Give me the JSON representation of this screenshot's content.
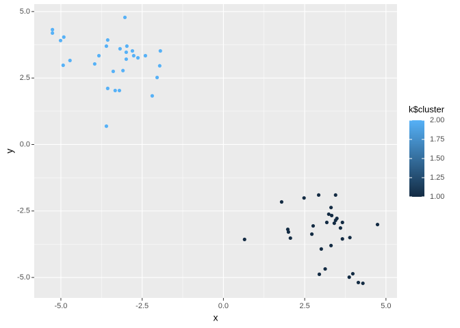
{
  "chart_data": {
    "type": "scatter",
    "x_label": "x",
    "y_label": "y",
    "x": [
      -5.26,
      -5.26,
      -4.91,
      -5.01,
      -4.93,
      -4.72,
      -3.03,
      -3.56,
      -3.6,
      -3.83,
      -3.96,
      -3.18,
      -2.97,
      -2.99,
      -2.8,
      -2.76,
      -2.63,
      -2.4,
      -1.94,
      -1.96,
      -3.39,
      -3.09,
      -2.99,
      -2.04,
      -3.56,
      -3.33,
      -3.2,
      -2.19,
      -3.6,
      1.79,
      2.48,
      2.93,
      3.45,
      3.31,
      3.24,
      3.33,
      3.49,
      3.45,
      3.18,
      3.41,
      3.66,
      3.6,
      2.76,
      1.98,
      2.0,
      2.72,
      2.06,
      0.65,
      3.89,
      4.74,
      3.31,
      3.01,
      3.66,
      3.13,
      3.98,
      2.95,
      3.87,
      4.15,
      4.29
    ],
    "values": [
      4.32,
      4.19,
      4.04,
      3.91,
      2.98,
      3.16,
      4.78,
      3.93,
      3.7,
      3.34,
      3.03,
      3.6,
      3.7,
      3.47,
      3.52,
      3.34,
      3.26,
      3.34,
      3.52,
      2.96,
      2.75,
      2.78,
      3.21,
      2.52,
      2.11,
      2.03,
      2.03,
      1.83,
      0.69,
      -2.16,
      -2.01,
      -1.9,
      -1.9,
      -2.37,
      -2.62,
      -2.67,
      -2.78,
      -2.85,
      -2.93,
      -2.96,
      -2.93,
      -3.14,
      -3.06,
      -3.19,
      -3.29,
      -3.37,
      -3.52,
      -3.57,
      -3.5,
      -3.01,
      -3.8,
      -3.93,
      -3.55,
      -4.68,
      -4.86,
      -4.88,
      -4.99,
      -5.19,
      -5.22
    ],
    "cluster": [
      2,
      2,
      2,
      2,
      2,
      2,
      2,
      2,
      2,
      2,
      2,
      2,
      2,
      2,
      2,
      2,
      2,
      2,
      2,
      2,
      2,
      2,
      2,
      2,
      2,
      2,
      2,
      2,
      2,
      1,
      1,
      1,
      1,
      1,
      1,
      1,
      1,
      1,
      1,
      1,
      1,
      1,
      1,
      1,
      1,
      1,
      1,
      1,
      1,
      1,
      1,
      1,
      1,
      1,
      1,
      1,
      1,
      1,
      1
    ],
    "xlim": [
      -5.82,
      5.34
    ],
    "ylim": [
      -5.77,
      5.28
    ],
    "xticks": [
      {
        "value": -5,
        "label": "-5.0"
      },
      {
        "value": -2.5,
        "label": "-2.5"
      },
      {
        "value": 0,
        "label": "0.0"
      },
      {
        "value": 2.5,
        "label": "2.5"
      },
      {
        "value": 5,
        "label": "5.0"
      }
    ],
    "yticks": [
      {
        "value": -5,
        "label": "-5.0"
      },
      {
        "value": -2.5,
        "label": "-2.5"
      },
      {
        "value": 0,
        "label": "0.0"
      },
      {
        "value": 2.5,
        "label": "2.5"
      },
      {
        "value": 5,
        "label": "5.0"
      }
    ],
    "grid": true,
    "color_scale": {
      "title": "k$cluster",
      "low": "#132B43",
      "high": "#56B1F7",
      "lim": [
        1,
        2
      ],
      "ticks": [
        {
          "value": 1,
          "label": "1.00"
        },
        {
          "value": 1.25,
          "label": "1.25"
        },
        {
          "value": 1.5,
          "label": "1.50"
        },
        {
          "value": 1.75,
          "label": "1.75"
        },
        {
          "value": 2,
          "label": "2.00"
        }
      ]
    }
  }
}
